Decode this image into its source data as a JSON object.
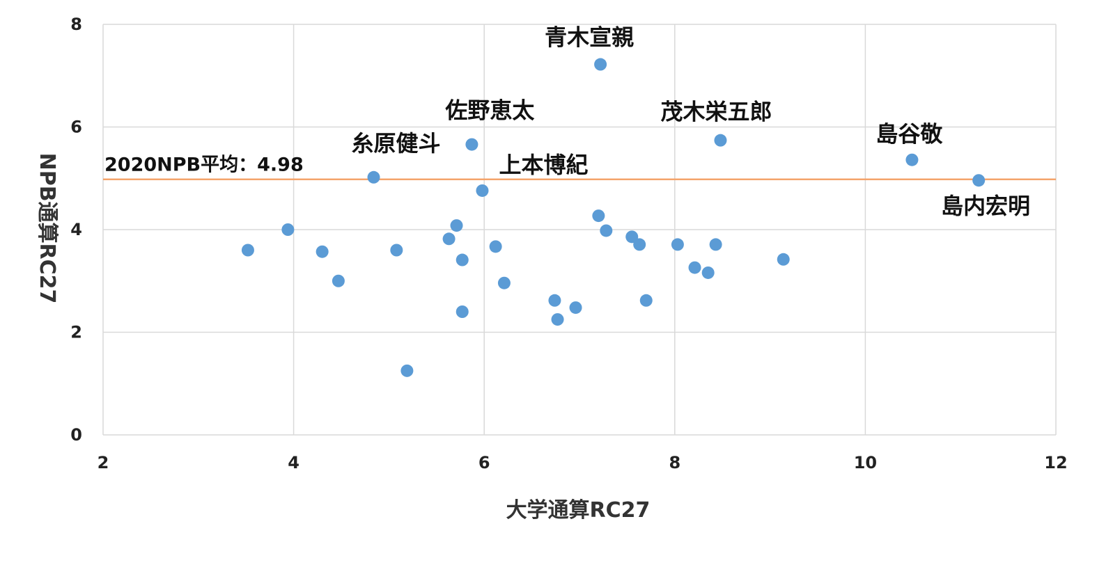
{
  "chart_data": {
    "type": "scatter",
    "xlabel": "大学通算RC27",
    "ylabel": "NPB通算RC27",
    "xlim": [
      2,
      12
    ],
    "ylim": [
      0,
      8
    ],
    "x_ticks": [
      2,
      4,
      6,
      8,
      10,
      12
    ],
    "y_ticks": [
      0,
      2,
      4,
      6,
      8
    ],
    "grid": true,
    "legend": "none",
    "marker_color": "#5b9bd5",
    "points": [
      {
        "x": 3.52,
        "y": 3.6
      },
      {
        "x": 3.94,
        "y": 4.0
      },
      {
        "x": 4.3,
        "y": 3.57
      },
      {
        "x": 4.47,
        "y": 3.0
      },
      {
        "x": 4.84,
        "y": 5.02,
        "label": "糸原健斗"
      },
      {
        "x": 5.08,
        "y": 3.6
      },
      {
        "x": 5.19,
        "y": 1.25
      },
      {
        "x": 5.63,
        "y": 3.82
      },
      {
        "x": 5.71,
        "y": 4.08
      },
      {
        "x": 5.77,
        "y": 3.41
      },
      {
        "x": 5.77,
        "y": 2.4
      },
      {
        "x": 5.87,
        "y": 5.66,
        "label": "佐野恵太"
      },
      {
        "x": 5.98,
        "y": 4.76,
        "label": "上本博紀"
      },
      {
        "x": 6.12,
        "y": 3.67
      },
      {
        "x": 6.21,
        "y": 2.96
      },
      {
        "x": 6.74,
        "y": 2.62
      },
      {
        "x": 6.77,
        "y": 2.25
      },
      {
        "x": 6.96,
        "y": 2.48
      },
      {
        "x": 7.2,
        "y": 4.27
      },
      {
        "x": 7.22,
        "y": 7.22,
        "label": "青木宣親"
      },
      {
        "x": 7.28,
        "y": 3.98
      },
      {
        "x": 7.55,
        "y": 3.86
      },
      {
        "x": 7.63,
        "y": 3.71
      },
      {
        "x": 7.7,
        "y": 2.62
      },
      {
        "x": 8.03,
        "y": 3.71
      },
      {
        "x": 8.21,
        "y": 3.26
      },
      {
        "x": 8.35,
        "y": 3.16
      },
      {
        "x": 8.43,
        "y": 3.71
      },
      {
        "x": 8.48,
        "y": 5.74,
        "label": "茂木栄五郎"
      },
      {
        "x": 9.14,
        "y": 3.42
      },
      {
        "x": 10.49,
        "y": 5.36,
        "label": "島谷敬"
      },
      {
        "x": 11.19,
        "y": 4.96,
        "label": "島内宏明"
      }
    ],
    "reference_line": {
      "y": 4.98,
      "label": "2020NPB平均：4.98",
      "color": "#f4a46c"
    }
  }
}
